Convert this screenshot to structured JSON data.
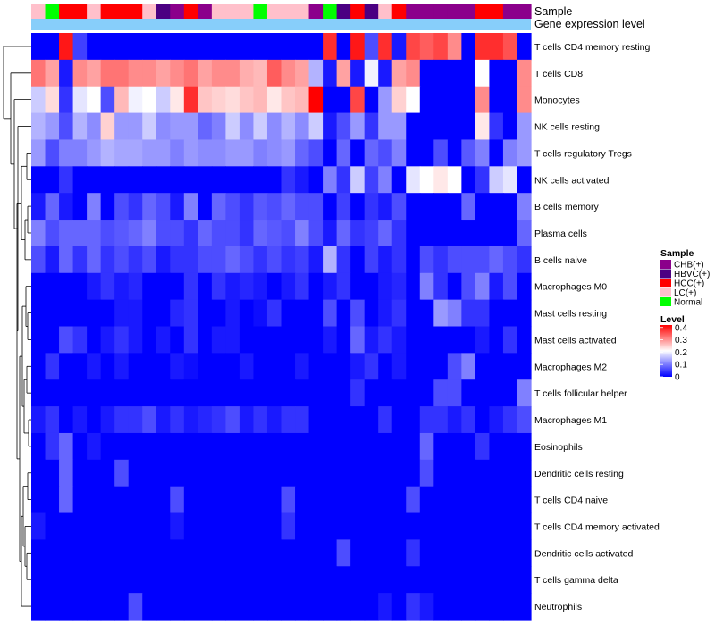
{
  "chart_data": {
    "type": "heatmap",
    "title": "",
    "annotation_tracks": [
      {
        "name": "Sample",
        "label": "Sample",
        "values": [
          "LC(+)",
          "Normal",
          "HCC(+)",
          "HCC(+)",
          "LC(+)",
          "HCC(+)",
          "HCC(+)",
          "HCC(+)",
          "LC(+)",
          "HBVC(+)",
          "CHB(+)",
          "HCC(+)",
          "CHB(+)",
          "LC(+)",
          "LC(+)",
          "LC(+)",
          "Normal",
          "LC(+)",
          "LC(+)",
          "LC(+)",
          "CHB(+)",
          "Normal",
          "HBVC(+)",
          "HCC(+)",
          "HBVC(+)",
          "LC(+)",
          "HCC(+)",
          "CHB(+)",
          "CHB(+)",
          "CHB(+)",
          "CHB(+)",
          "CHB(+)",
          "HCC(+)",
          "HCC(+)",
          "CHB(+)",
          "CHB(+)"
        ]
      },
      {
        "name": "Gene expression level",
        "label": "Gene expression level",
        "color": "#87cefa"
      }
    ],
    "row_labels": [
      "T cells CD4 memory resting",
      "T cells CD8",
      "Monocytes",
      "NK cells resting",
      "T cells regulatory  Tregs",
      "NK cells activated",
      "B cells memory",
      "Plasma cells",
      "B cells naive",
      "Macrophages M0",
      "Mast cells resting",
      "Mast cells activated",
      "Macrophages M2",
      "T cells follicular helper",
      "Macrophages M1",
      "Eosinophils",
      "Dendritic cells resting",
      "T cells CD4 naive",
      "T cells CD4 memory activated",
      "Dendritic cells activated",
      "T cells gamma delta",
      "Neutrophils"
    ],
    "values": [
      [
        0,
        0,
        0.4,
        0.05,
        0,
        0,
        0,
        0,
        0,
        0,
        0,
        0,
        0,
        0,
        0,
        0,
        0,
        0,
        0,
        0,
        0,
        0.38,
        0,
        0.4,
        0.06,
        0.38,
        0.02,
        0.36,
        0.34,
        0.36,
        0.3,
        0,
        0.38,
        0.38,
        0.35,
        0
      ],
      [
        0.32,
        0.28,
        0.02,
        0.3,
        0.28,
        0.32,
        0.32,
        0.3,
        0.3,
        0.28,
        0.3,
        0.32,
        0.28,
        0.3,
        0.3,
        0.27,
        0.26,
        0.34,
        0.3,
        0.28,
        0.14,
        0.02,
        0.28,
        0.02,
        0.19,
        0.02,
        0.28,
        0.3,
        0,
        0,
        0,
        0,
        0.2,
        0,
        0,
        0.3
      ],
      [
        0.16,
        0.23,
        0.04,
        0.18,
        0.2,
        0.06,
        0.26,
        0.19,
        0.2,
        0.16,
        0.22,
        0.38,
        0.25,
        0.24,
        0.23,
        0.25,
        0.26,
        0.22,
        0.25,
        0.26,
        0.42,
        0,
        0,
        0.36,
        0,
        0.12,
        0.24,
        0.2,
        0,
        0,
        0,
        0,
        0.3,
        0,
        0,
        0.3
      ],
      [
        0.14,
        0.12,
        0.06,
        0.14,
        0.11,
        0.24,
        0.12,
        0.12,
        0.16,
        0.11,
        0.12,
        0.12,
        0.08,
        0.1,
        0.16,
        0.11,
        0.16,
        0.11,
        0.14,
        0.11,
        0.16,
        0.02,
        0.06,
        0.12,
        0.04,
        0.12,
        0.12,
        0,
        0,
        0,
        0,
        0,
        0.22,
        0.04,
        0,
        0.12
      ],
      [
        0.12,
        0.06,
        0.1,
        0.1,
        0.12,
        0.14,
        0.13,
        0.13,
        0.12,
        0.12,
        0.1,
        0.12,
        0.11,
        0.11,
        0.12,
        0.12,
        0.1,
        0.11,
        0.12,
        0.08,
        0.06,
        0,
        0.08,
        0,
        0.08,
        0.06,
        0.1,
        0,
        0,
        0.06,
        0,
        0.07,
        0.1,
        0,
        0.1,
        0.12
      ],
      [
        0,
        0,
        0.04,
        0,
        0,
        0,
        0,
        0,
        0,
        0,
        0,
        0,
        0,
        0,
        0,
        0,
        0,
        0,
        0.04,
        0.02,
        0,
        0.1,
        0.04,
        0.16,
        0.05,
        0.1,
        0,
        0.18,
        0.2,
        0.22,
        0.2,
        0,
        0.04,
        0.16,
        0.18,
        0
      ],
      [
        0.02,
        0.08,
        0.02,
        0,
        0.1,
        0,
        0.06,
        0.04,
        0.08,
        0.06,
        0.02,
        0.1,
        0,
        0.08,
        0.06,
        0.04,
        0.07,
        0.06,
        0.08,
        0.06,
        0.06,
        0,
        0.05,
        0,
        0.04,
        0.02,
        0.06,
        0,
        0,
        0,
        0,
        0.08,
        0,
        0,
        0,
        0.1
      ],
      [
        0.1,
        0.06,
        0.08,
        0.08,
        0.08,
        0.06,
        0.07,
        0.08,
        0.1,
        0.06,
        0.06,
        0.04,
        0.08,
        0.06,
        0.06,
        0.04,
        0.08,
        0.07,
        0.06,
        0.1,
        0.06,
        0.02,
        0.08,
        0.04,
        0.05,
        0.08,
        0.04,
        0,
        0,
        0,
        0,
        0,
        0,
        0,
        0,
        0.08
      ],
      [
        0.06,
        0.02,
        0.08,
        0.04,
        0.08,
        0.04,
        0.06,
        0.04,
        0.06,
        0.02,
        0.04,
        0.04,
        0.06,
        0.06,
        0.08,
        0.06,
        0.04,
        0.06,
        0.04,
        0.05,
        0.02,
        0.14,
        0.04,
        0,
        0.05,
        0.02,
        0.04,
        0,
        0.06,
        0.04,
        0.06,
        0.06,
        0.06,
        0.08,
        0.06,
        0.04
      ],
      [
        0,
        0,
        0,
        0,
        0.02,
        0.04,
        0.02,
        0.03,
        0,
        0,
        0,
        0.04,
        0,
        0.04,
        0.02,
        0.03,
        0.02,
        0,
        0.02,
        0.04,
        0,
        0.02,
        0.04,
        0,
        0,
        0.02,
        0.03,
        0,
        0.1,
        0.04,
        0,
        0.06,
        0.1,
        0.02,
        0.06,
        0
      ],
      [
        0,
        0,
        0,
        0,
        0,
        0,
        0.02,
        0.02,
        0,
        0,
        0.03,
        0.04,
        0,
        0,
        0.02,
        0,
        0.01,
        0.04,
        0,
        0,
        0,
        0.06,
        0,
        0.06,
        0,
        0.02,
        0.04,
        0,
        0,
        0.12,
        0.1,
        0.04,
        0.04,
        0,
        0,
        0
      ],
      [
        0,
        0,
        0.06,
        0.04,
        0,
        0.02,
        0.04,
        0.02,
        0,
        0.02,
        0,
        0.04,
        0,
        0.02,
        0.02,
        0,
        0,
        0,
        0,
        0,
        0,
        0.02,
        0,
        0.08,
        0.02,
        0.04,
        0.02,
        0,
        0,
        0,
        0,
        0,
        0.02,
        0,
        0.04,
        0
      ],
      [
        0,
        0.04,
        0,
        0,
        0.02,
        0,
        0.02,
        0,
        0,
        0,
        0.02,
        0.01,
        0,
        0,
        0,
        0.02,
        0,
        0,
        0,
        0.02,
        0,
        0,
        0,
        0.02,
        0.04,
        0,
        0.02,
        0,
        0,
        0,
        0.06,
        0.1,
        0,
        0,
        0,
        0
      ],
      [
        0,
        0,
        0,
        0,
        0,
        0,
        0,
        0,
        0,
        0,
        0,
        0,
        0,
        0,
        0,
        0,
        0,
        0,
        0,
        0,
        0,
        0,
        0,
        0.04,
        0,
        0,
        0,
        0,
        0,
        0.06,
        0.06,
        0,
        0,
        0,
        0,
        0.1
      ],
      [
        0.02,
        0.04,
        0,
        0.02,
        0,
        0.02,
        0.04,
        0.04,
        0.06,
        0.02,
        0.04,
        0.02,
        0.03,
        0.04,
        0.06,
        0.02,
        0.04,
        0.02,
        0.04,
        0.04,
        0,
        0,
        0,
        0,
        0,
        0.04,
        0,
        0,
        0.04,
        0.04,
        0.02,
        0.04,
        0,
        0.02,
        0.04,
        0.06
      ],
      [
        0,
        0.04,
        0.08,
        0,
        0.02,
        0,
        0,
        0,
        0,
        0,
        0,
        0,
        0,
        0,
        0,
        0,
        0,
        0,
        0,
        0,
        0,
        0,
        0,
        0,
        0,
        0,
        0,
        0,
        0.08,
        0,
        0,
        0,
        0.04,
        0,
        0,
        0
      ],
      [
        0,
        0,
        0.08,
        0,
        0,
        0,
        0.06,
        0,
        0,
        0,
        0,
        0,
        0,
        0,
        0,
        0,
        0,
        0,
        0,
        0,
        0,
        0,
        0,
        0,
        0,
        0,
        0,
        0,
        0.06,
        0,
        0,
        0,
        0,
        0,
        0,
        0
      ],
      [
        0,
        0,
        0.08,
        0,
        0,
        0,
        0,
        0,
        0,
        0,
        0.06,
        0,
        0,
        0,
        0,
        0,
        0,
        0,
        0.06,
        0,
        0,
        0,
        0,
        0,
        0,
        0,
        0,
        0.06,
        0,
        0,
        0,
        0,
        0,
        0,
        0,
        0
      ],
      [
        0.02,
        0,
        0,
        0,
        0,
        0,
        0,
        0,
        0,
        0,
        0.02,
        0,
        0,
        0,
        0,
        0,
        0,
        0,
        0.04,
        0,
        0,
        0,
        0,
        0,
        0,
        0,
        0,
        0,
        0,
        0,
        0,
        0,
        0,
        0,
        0,
        0
      ],
      [
        0,
        0,
        0,
        0,
        0,
        0,
        0,
        0,
        0,
        0,
        0,
        0,
        0,
        0,
        0,
        0,
        0,
        0,
        0,
        0,
        0,
        0,
        0.06,
        0,
        0,
        0,
        0,
        0.04,
        0,
        0,
        0,
        0,
        0,
        0,
        0,
        0
      ],
      [
        0,
        0,
        0,
        0,
        0,
        0,
        0,
        0,
        0,
        0,
        0,
        0,
        0,
        0,
        0,
        0,
        0,
        0,
        0,
        0,
        0,
        0,
        0,
        0,
        0,
        0,
        0,
        0,
        0,
        0,
        0,
        0,
        0,
        0,
        0,
        0
      ],
      [
        0,
        0,
        0,
        0,
        0,
        0,
        0,
        0.06,
        0,
        0,
        0,
        0,
        0,
        0,
        0,
        0,
        0,
        0,
        0,
        0,
        0,
        0,
        0,
        0,
        0,
        0.02,
        0,
        0.04,
        0.02,
        0,
        0,
        0,
        0,
        0,
        0,
        0
      ]
    ],
    "color_scale": {
      "min": 0,
      "max": 0.42,
      "colors": [
        "#0000ff",
        "#ffffff",
        "#ff0000"
      ],
      "mid": 0.2
    },
    "legend": {
      "sample": {
        "title": "Sample",
        "items": [
          {
            "label": "CHB(+)",
            "color": "#8b008b"
          },
          {
            "label": "HBVC(+)",
            "color": "#4b0082"
          },
          {
            "label": "HCC(+)",
            "color": "#ff0000"
          },
          {
            "label": "LC(+)",
            "color": "#ffc0cb"
          },
          {
            "label": "Normal",
            "color": "#00ff00"
          }
        ]
      },
      "level": {
        "title": "Level",
        "ticks": [
          "0.4",
          "0.3",
          "0.2",
          "0.1",
          "0"
        ],
        "tick_values": [
          0.4,
          0.3,
          0.2,
          0.1,
          0
        ]
      }
    },
    "dendrogram": "row clustering dendrogram on the left",
    "placement": "legend right"
  }
}
